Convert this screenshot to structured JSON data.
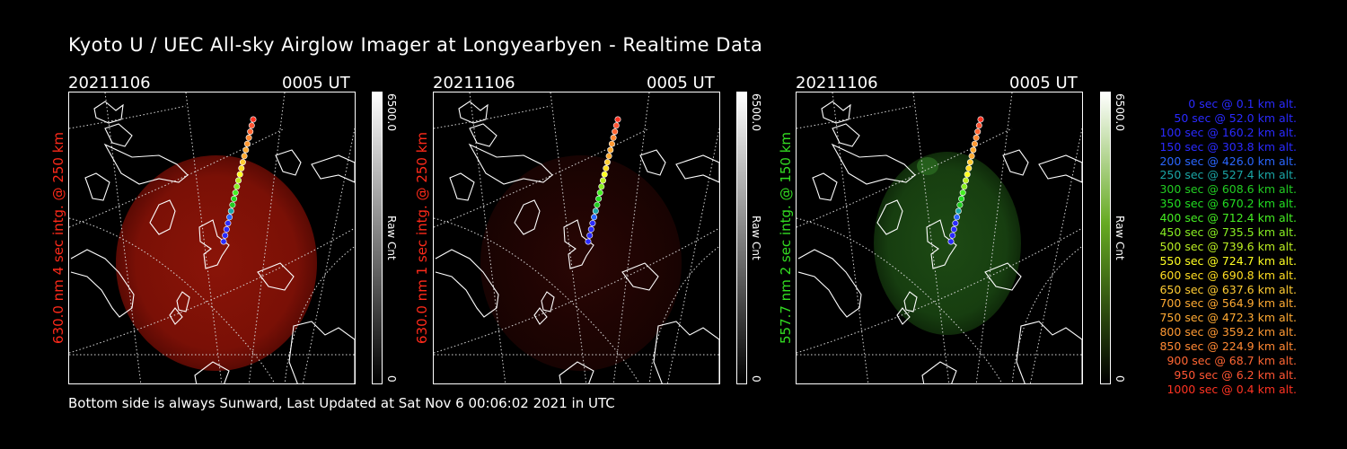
{
  "title": "Kyoto U / UEC All-sky Airglow Imager at Longyearbyen - Realtime Data",
  "footer": "Bottom side is always Sunward, Last Updated at Sat Nov  6 00:06:02 2021 in UTC",
  "panels": [
    {
      "date": "20211106",
      "time": "0005 UT",
      "label": "630.0 nm 4 sec intg. @ 250 km",
      "color": "#ff2a1a",
      "colorbar": {
        "max": "6500.0",
        "min": "0",
        "unit": "Raw Cnt"
      }
    },
    {
      "date": "20211106",
      "time": "0005 UT",
      "label": "630.0 nm 1 sec intg. @ 250 km",
      "color": "#ff2a1a",
      "colorbar": {
        "max": "6500.0",
        "min": "0",
        "unit": "Raw Cnt"
      }
    },
    {
      "date": "20211106",
      "time": "0005 UT",
      "label": "557.7 nm 2 sec intg. @ 150 km",
      "color": "#33dd22",
      "colorbar": {
        "max": "6500.0",
        "min": "0",
        "unit": "Raw Cnt"
      }
    }
  ],
  "legend": [
    {
      "text": "0 sec @   0.1 km alt.",
      "color": "#2a2aff"
    },
    {
      "text": "50 sec @  52.0 km alt.",
      "color": "#2a2aff"
    },
    {
      "text": "100 sec @ 160.2 km alt.",
      "color": "#2a2aff"
    },
    {
      "text": "150 sec @ 303.8 km alt.",
      "color": "#2a2aff"
    },
    {
      "text": "200 sec @ 426.0 km alt.",
      "color": "#2a66ff"
    },
    {
      "text": "250 sec @ 527.4 km alt.",
      "color": "#1aa6a6"
    },
    {
      "text": "300 sec @ 608.6 km alt.",
      "color": "#22cc22"
    },
    {
      "text": "350 sec @ 670.2 km alt.",
      "color": "#22dd22"
    },
    {
      "text": "400 sec @ 712.4 km alt.",
      "color": "#44ee22"
    },
    {
      "text": "450 sec @ 735.5 km alt.",
      "color": "#88ee22"
    },
    {
      "text": "500 sec @ 739.6 km alt.",
      "color": "#bbee22"
    },
    {
      "text": "550 sec @ 724.7 km alt.",
      "color": "#ffff22"
    },
    {
      "text": "600 sec @ 690.8 km alt.",
      "color": "#ffdd22"
    },
    {
      "text": "650 sec @ 637.6 km alt.",
      "color": "#ffcc33"
    },
    {
      "text": "700 sec @ 564.9 km alt.",
      "color": "#ffaa33"
    },
    {
      "text": "750 sec @ 472.3 km alt.",
      "color": "#ffaa33"
    },
    {
      "text": "800 sec @ 359.2 km alt.",
      "color": "#ff9933"
    },
    {
      "text": "850 sec @ 224.9 km alt.",
      "color": "#ff8833"
    },
    {
      "text": "900 sec @  68.7 km alt.",
      "color": "#ff6633"
    },
    {
      "text": "950 sec @   6.2 km alt.",
      "color": "#ff5533"
    },
    {
      "text": "1000 sec @   0.4 km alt.",
      "color": "#ff3322"
    }
  ]
}
